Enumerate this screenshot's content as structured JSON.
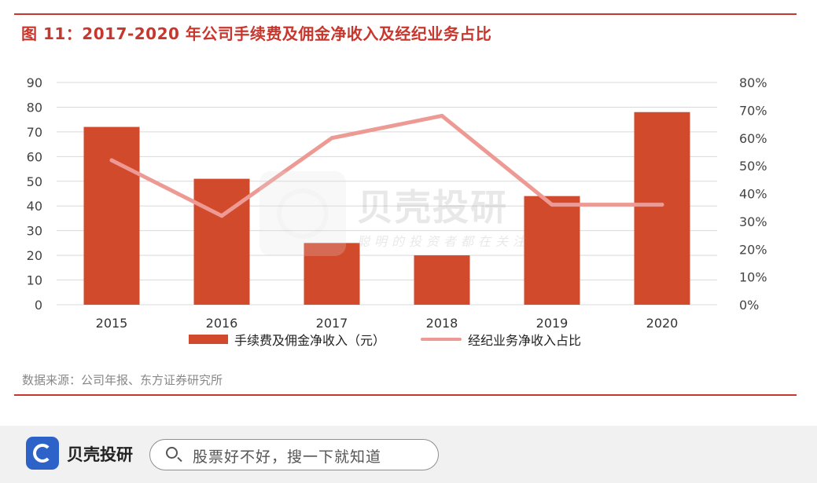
{
  "title": "图 11：2017-2020 年公司手续费及佣金净收入及经纪业务占比",
  "source": "数据来源：公司年报、东方证券研究所",
  "watermark": {
    "name": "贝壳投研",
    "slogan": "聪明的投资者都在关注"
  },
  "footer": {
    "brand": "贝壳投研",
    "search_placeholder": "股票好不好，搜一下就知道"
  },
  "colors": {
    "bar": "#d24a2c",
    "line": "#ee9a94",
    "accent": "#c8372d",
    "grid": "#d9d9d9"
  },
  "chart_data": {
    "type": "bar",
    "categories": [
      "2015",
      "2016",
      "2017",
      "2018",
      "2019",
      "2020"
    ],
    "series": [
      {
        "name": "手续费及佣金净收入（元）",
        "type": "bar",
        "axis": "left",
        "values": [
          72,
          51,
          25,
          20,
          44,
          78
        ]
      },
      {
        "name": "经纪业务净收入占比",
        "type": "line",
        "axis": "right",
        "values": [
          0.52,
          0.32,
          0.6,
          0.68,
          0.36,
          0.36
        ]
      }
    ],
    "ylim": [
      0,
      90
    ],
    "yticks": [
      "0",
      "10",
      "20",
      "30",
      "40",
      "50",
      "60",
      "70",
      "80",
      "90"
    ],
    "y2lim": [
      0,
      0.8
    ],
    "y2ticks": [
      "0%",
      "10%",
      "20%",
      "30%",
      "40%",
      "50%",
      "60%",
      "70%",
      "80%"
    ],
    "grid": true,
    "legend_position": "bottom"
  }
}
